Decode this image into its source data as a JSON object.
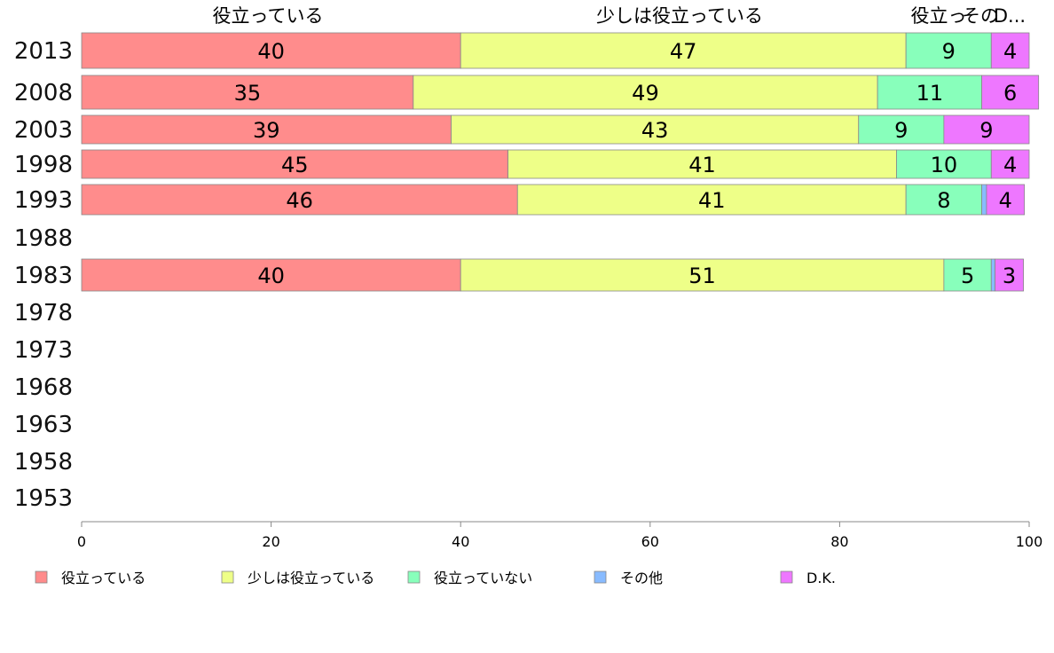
{
  "chart_data": {
    "type": "bar",
    "orientation": "horizontal",
    "stacked": true,
    "categories": [
      "2013",
      "2008",
      "2003",
      "1998",
      "1993",
      "1988",
      "1983",
      "1978",
      "1973",
      "1968",
      "1963",
      "1958",
      "1953"
    ],
    "series": [
      {
        "name": "役立っている",
        "color": "#ff8c8c",
        "values": [
          40,
          35,
          39,
          45,
          46,
          null,
          40,
          null,
          null,
          null,
          null,
          null,
          null
        ]
      },
      {
        "name": "少しは役立っている",
        "color": "#eeff88",
        "values": [
          47,
          49,
          43,
          41,
          41,
          null,
          51,
          null,
          null,
          null,
          null,
          null,
          null
        ]
      },
      {
        "name": "役立っていない",
        "color": "#88ffbb",
        "values": [
          9,
          11,
          9,
          10,
          8,
          null,
          5,
          null,
          null,
          null,
          null,
          null,
          null
        ]
      },
      {
        "name": "その他",
        "color": "#88bbff",
        "values": [
          0,
          0,
          0,
          0,
          0.5,
          null,
          0.4,
          null,
          null,
          null,
          null,
          null,
          null
        ]
      },
      {
        "name": "D.K.",
        "color": "#ee77ff",
        "values": [
          4,
          6,
          9,
          4,
          4,
          null,
          3,
          null,
          null,
          null,
          null,
          null,
          null
        ]
      }
    ],
    "xlim": [
      0,
      100
    ],
    "xticks": [
      0,
      20,
      40,
      60,
      80,
      100
    ],
    "top_labels": [
      "役立っている",
      "少しは役立っている",
      "役立っ",
      "その",
      "D..."
    ],
    "legend_position": "bottom",
    "grid": false
  }
}
